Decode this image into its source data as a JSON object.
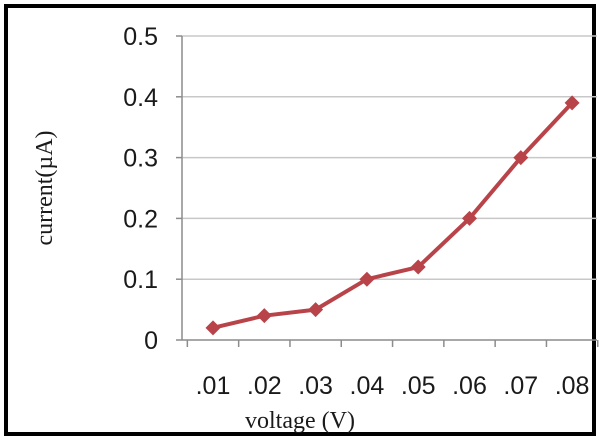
{
  "chart_data": {
    "type": "line",
    "title": "",
    "xlabel": "voltage (V)",
    "ylabel": "current(µA)",
    "x_tick_labels": [
      ".01",
      ".02",
      ".03",
      ".04",
      ".05",
      ".06",
      ".07",
      ".08"
    ],
    "y_tick_labels": [
      "0",
      "0.1",
      "0.2",
      "0.3",
      "0.4",
      "0.5"
    ],
    "ylim": [
      0,
      0.5
    ],
    "grid": "horizontal",
    "legend": "none",
    "series": [
      {
        "color": "#b8444a",
        "marker": "diamond",
        "points": [
          {
            "x": 0.01,
            "y": 0.02
          },
          {
            "x": 0.02,
            "y": 0.04
          },
          {
            "x": 0.03,
            "y": 0.05
          },
          {
            "x": 0.04,
            "y": 0.1
          },
          {
            "x": 0.05,
            "y": 0.12
          },
          {
            "x": 0.06,
            "y": 0.2
          },
          {
            "x": 0.07,
            "y": 0.3
          },
          {
            "x": 0.08,
            "y": 0.39
          }
        ]
      }
    ]
  }
}
